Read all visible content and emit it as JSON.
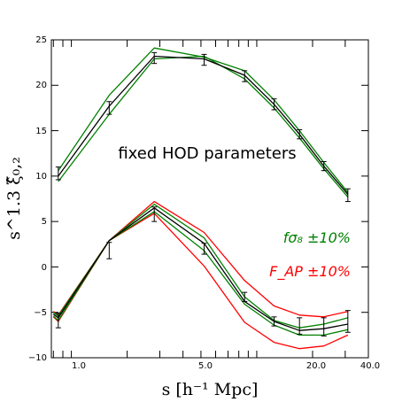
{
  "chart_data": {
    "type": "line",
    "xlabel": "s [h⁻¹ Mpc]",
    "ylabel": "s^1.3 ξ̂₀,₂",
    "xscale": "log",
    "xlim": [
      0.78,
      40.0
    ],
    "ylim": [
      -10,
      25
    ],
    "xtick_labels": [
      "1.0",
      "5.0",
      "20.0",
      "40.0"
    ],
    "ytick_labels": [
      "−10",
      "−5",
      "0",
      "5",
      "10",
      "15",
      "20",
      "25"
    ],
    "grid": false,
    "annotations": [
      {
        "text": "fixed HOD parameters",
        "color": "#000000"
      },
      {
        "text": "fσ₈ ±10%",
        "color": "#008000"
      },
      {
        "text": "F_AP ±10%",
        "color": "#ff0000"
      }
    ],
    "colors": {
      "fiducial": "#000000",
      "fsigma8": "#008000",
      "fap": "#ff0000"
    },
    "upper": {
      "x": [
        0.85,
        1.6,
        2.8,
        5.2,
        8.6,
        12.4,
        17.0,
        23.0,
        31.0
      ],
      "data": [
        10.3,
        17.5,
        23.0,
        22.8,
        21.0,
        17.9,
        14.6,
        11.1,
        7.9
      ],
      "err": [
        0.7,
        0.7,
        0.6,
        0.6,
        0.6,
        0.6,
        0.5,
        0.5,
        0.7
      ],
      "fiducial": [
        10.0,
        17.7,
        23.2,
        22.9,
        21.1,
        17.9,
        14.6,
        11.1,
        8.0
      ],
      "fsigma8_hi": [
        10.6,
        18.9,
        24.1,
        23.1,
        21.6,
        18.4,
        15.0,
        11.5,
        8.2
      ],
      "fsigma8_lo": [
        9.4,
        16.8,
        22.9,
        23.2,
        20.7,
        17.5,
        14.2,
        10.8,
        7.7
      ]
    },
    "lower": {
      "x": [
        0.8,
        0.85,
        1.6,
        2.8,
        5.2,
        8.6,
        12.4,
        17.0,
        23.0,
        31.0
      ],
      "data": [
        null,
        -5.9,
        1.8,
        5.8,
        2.0,
        -3.3,
        -6.0,
        -6.5,
        -6.6,
        -6.0
      ],
      "err": [
        null,
        0.8,
        0.9,
        0.8,
        0.6,
        0.5,
        0.5,
        0.9,
        1.0,
        1.2
      ],
      "fiducial": [
        -5.2,
        -5.6,
        2.9,
        6.5,
        2.6,
        -3.8,
        -6.0,
        -7.0,
        -6.8,
        -6.3
      ],
      "fsigma8_hi": [
        -5.0,
        -5.4,
        2.9,
        6.9,
        3.2,
        -3.3,
        -5.9,
        -6.7,
        -6.3,
        -5.6
      ],
      "fsigma8_lo": [
        -5.4,
        -5.9,
        2.9,
        6.1,
        1.8,
        -4.1,
        -6.4,
        -7.5,
        -7.5,
        -6.9
      ],
      "fap_hi": [
        -4.9,
        -5.3,
        2.9,
        7.2,
        3.8,
        -1.5,
        -4.3,
        -5.3,
        -5.5,
        -4.9
      ],
      "fap_lo": [
        -5.5,
        -6.0,
        2.9,
        5.9,
        0.1,
        -6.1,
        -8.3,
        -9.0,
        -8.7,
        -7.5
      ]
    }
  }
}
